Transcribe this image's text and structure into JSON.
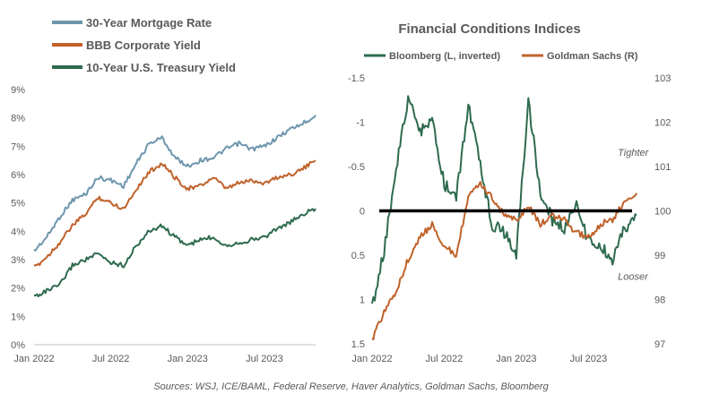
{
  "chart_data": [
    {
      "type": "line",
      "title": "",
      "x_tick_labels": [
        "Jan 2022",
        "Jul 2022",
        "Jan 2023",
        "Jul 2023"
      ],
      "x_range": [
        "2022-01",
        "2023-11"
      ],
      "ylim": [
        0,
        9
      ],
      "y_tick_labels": [
        "0%",
        "1%",
        "2%",
        "3%",
        "4%",
        "5%",
        "6%",
        "7%",
        "8%",
        "9%"
      ],
      "grid": false,
      "legend_position": "top-left",
      "series": [
        {
          "name": "30-Year Mortgage Rate",
          "color": "#6e96ad",
          "x": [
            "2022-01",
            "2022-02",
            "2022-03",
            "2022-04",
            "2022-05",
            "2022-06",
            "2022-07",
            "2022-08",
            "2022-09",
            "2022-10",
            "2022-11",
            "2022-12",
            "2023-01",
            "2023-02",
            "2023-03",
            "2023-04",
            "2023-05",
            "2023-06",
            "2023-07",
            "2023-08",
            "2023-09",
            "2023-10",
            "2023-11"
          ],
          "y": [
            3.3,
            3.8,
            4.5,
            5.1,
            5.3,
            5.9,
            5.8,
            5.6,
            6.4,
            7.1,
            7.3,
            6.6,
            6.3,
            6.5,
            6.6,
            6.9,
            7.1,
            6.9,
            7.0,
            7.3,
            7.6,
            7.8,
            8.1
          ]
        },
        {
          "name": "BBB Corporate Yield",
          "color": "#c0622b",
          "x": [
            "2022-01",
            "2022-02",
            "2022-03",
            "2022-04",
            "2022-05",
            "2022-06",
            "2022-07",
            "2022-08",
            "2022-09",
            "2022-10",
            "2022-11",
            "2022-12",
            "2023-01",
            "2023-02",
            "2023-03",
            "2023-04",
            "2023-05",
            "2023-06",
            "2023-07",
            "2023-08",
            "2023-09",
            "2023-10",
            "2023-11"
          ],
          "y": [
            2.7,
            3.1,
            3.6,
            4.2,
            4.6,
            5.2,
            5.0,
            4.8,
            5.5,
            6.1,
            6.4,
            5.9,
            5.5,
            5.6,
            5.9,
            5.5,
            5.7,
            5.8,
            5.7,
            5.9,
            6.0,
            6.2,
            6.5
          ]
        },
        {
          "name": "10-Year U.S. Treasury Yield",
          "color": "#2e6b4e",
          "x": [
            "2022-01",
            "2022-02",
            "2022-03",
            "2022-04",
            "2022-05",
            "2022-06",
            "2022-07",
            "2022-08",
            "2022-09",
            "2022-10",
            "2022-11",
            "2022-12",
            "2023-01",
            "2023-02",
            "2023-03",
            "2023-04",
            "2023-05",
            "2023-06",
            "2023-07",
            "2023-08",
            "2023-09",
            "2023-10",
            "2023-11"
          ],
          "y": [
            1.7,
            1.9,
            2.1,
            2.8,
            3.0,
            3.2,
            2.9,
            2.8,
            3.5,
            4.0,
            4.2,
            3.8,
            3.5,
            3.7,
            3.8,
            3.5,
            3.6,
            3.7,
            3.8,
            4.1,
            4.3,
            4.6,
            4.8
          ]
        }
      ]
    },
    {
      "type": "line",
      "title": "Financial Conditions  Indices",
      "x_tick_labels": [
        "Jan 2022",
        "Jul 2022",
        "Jan 2023",
        "Jul 2023"
      ],
      "x_range": [
        "2022-01",
        "2023-11"
      ],
      "y_left": {
        "range": [
          1.5,
          -1.5
        ],
        "inverted": true,
        "tick_labels": [
          "-1.5",
          "-1",
          "-0.5",
          "0",
          "0.5",
          "1",
          "1.5"
        ]
      },
      "y_right": {
        "range": [
          97,
          103
        ],
        "tick_labels": [
          "97",
          "98",
          "99",
          "100",
          "101",
          "102",
          "103"
        ]
      },
      "grid": false,
      "legend_position": "top",
      "reference_line": {
        "y": 0,
        "color": "#000000"
      },
      "annotations": [
        {
          "text": "Tighter",
          "x": "2023-09",
          "y": -0.62
        },
        {
          "text": "Looser",
          "x": "2023-09",
          "y": 0.78
        }
      ],
      "series": [
        {
          "name": "Bloomberg (L, inverted)",
          "axis": "left",
          "color": "#2e6b4e",
          "x": [
            "2022-01",
            "2022-02",
            "2022-03",
            "2022-04",
            "2022-05",
            "2022-06",
            "2022-07",
            "2022-08",
            "2022-09",
            "2022-10",
            "2022-11",
            "2022-12",
            "2023-01",
            "2023-02",
            "2023-03",
            "2023-04",
            "2023-05",
            "2023-06",
            "2023-07",
            "2023-08",
            "2023-09",
            "2023-10",
            "2023-11"
          ],
          "y": [
            1.1,
            0.45,
            -0.5,
            -1.25,
            -0.9,
            -1.0,
            -0.3,
            -0.15,
            -1.2,
            -0.5,
            0.15,
            0.25,
            0.5,
            -1.25,
            -0.2,
            0.1,
            0.2,
            -0.1,
            0.35,
            0.4,
            0.55,
            0.2,
            0.05
          ]
        },
        {
          "name": "Goldman Sachs (R)",
          "axis": "right",
          "color": "#c0622b",
          "x": [
            "2022-01",
            "2022-02",
            "2022-03",
            "2022-04",
            "2022-05",
            "2022-06",
            "2022-07",
            "2022-08",
            "2022-09",
            "2022-10",
            "2022-11",
            "2022-12",
            "2023-01",
            "2023-02",
            "2023-03",
            "2023-04",
            "2023-05",
            "2023-06",
            "2023-07",
            "2023-08",
            "2023-09",
            "2023-10",
            "2023-11"
          ],
          "y": [
            97.1,
            97.7,
            98.2,
            98.9,
            99.4,
            99.7,
            99.2,
            99.0,
            100.3,
            100.6,
            100.3,
            99.9,
            99.8,
            100.1,
            99.7,
            99.9,
            99.8,
            99.5,
            99.4,
            99.7,
            99.8,
            100.2,
            100.4
          ]
        }
      ]
    }
  ],
  "footer": {
    "source": "Sources: WSJ, ICE/BAML, Federal Reserve, Haver Analytics, Goldman Sachs, Bloomberg"
  }
}
